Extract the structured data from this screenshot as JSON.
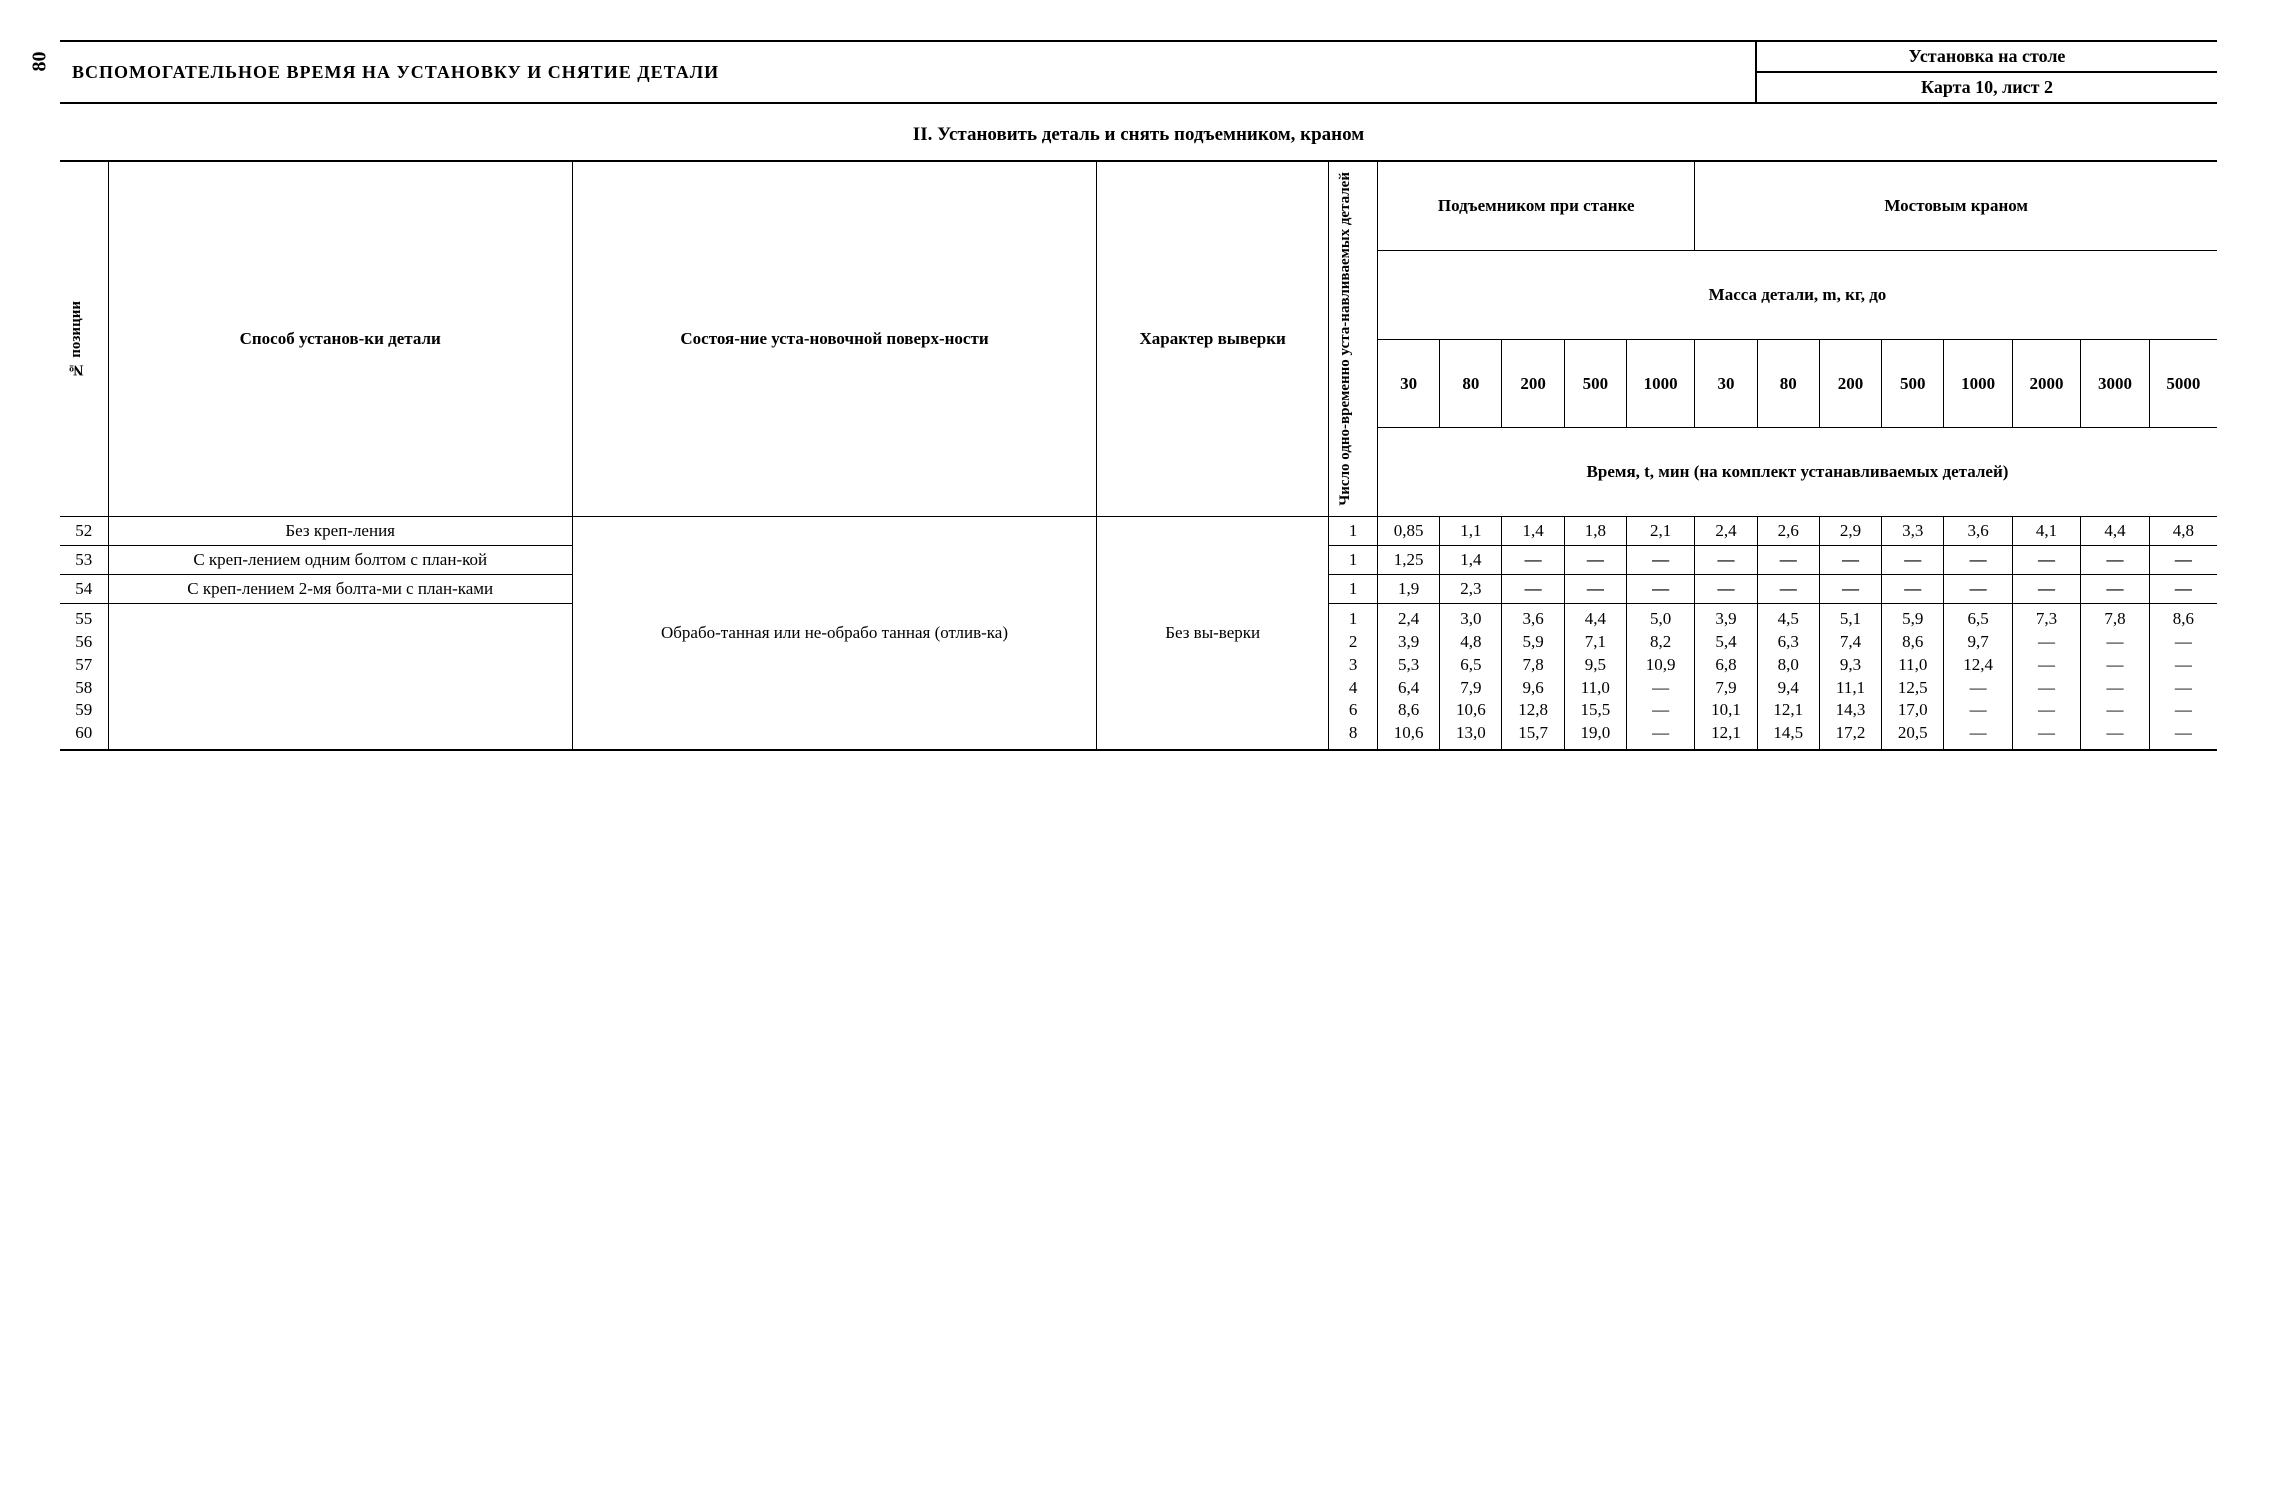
{
  "page_number": "80",
  "header": {
    "main_title": "ВСПОМОГАТЕЛЬНОЕ ВРЕМЯ НА УСТАНОВКУ И СНЯТИЕ ДЕТАЛИ",
    "sub1": "Установка на столе",
    "sub2": "Карта 10, лист 2"
  },
  "section_title": "II. Установить деталь и снять подъемником, краном",
  "col_headers": {
    "pos": "№ позиции",
    "method": "Способ установ-ки детали",
    "surface": "Состоя-ние уста-новочной поверх-ности",
    "align": "Характер выверки",
    "count": "Число одно-временно уста-навливаемых деталей",
    "lift_group": "Подъемником при станке",
    "crane_group": "Мостовым краном",
    "mass_label": "Масса детали, m, кг, до",
    "time_label": "Время, t, мин   (на комплект устанавливаемых деталей)",
    "lift_masses": [
      "30",
      "80",
      "200",
      "500",
      "1000"
    ],
    "crane_masses": [
      "30",
      "80",
      "200",
      "500",
      "1000",
      "2000",
      "3000",
      "5000"
    ]
  },
  "shared": {
    "surface": "Обрабо-танная или не-обрабо танная (отлив-ка)",
    "align": "Без вы-верки"
  },
  "rows": {
    "r52": {
      "pos": "52",
      "method": "Без креп-ления",
      "count": "1",
      "vals": [
        "0,85",
        "1,1",
        "1,4",
        "1,8",
        "2,1",
        "2,4",
        "2,6",
        "2,9",
        "3,3",
        "3,6",
        "4,1",
        "4,4",
        "4,8"
      ]
    },
    "r53": {
      "pos": "53",
      "method": "С креп-лением одним болтом с план-кой",
      "count": "1",
      "vals": [
        "1,25",
        "1,4",
        "—",
        "—",
        "—",
        "—",
        "—",
        "—",
        "—",
        "—",
        "—",
        "—",
        "—"
      ]
    },
    "r54": {
      "pos": "54",
      "method": "С креп-лением 2-мя болта-ми с план-ками",
      "count": "1",
      "vals": [
        "1,9",
        "2,3",
        "—",
        "—",
        "—",
        "—",
        "—",
        "—",
        "—",
        "—",
        "—",
        "—",
        "—"
      ]
    },
    "group": {
      "pos": [
        "55",
        "56",
        "57",
        "58",
        "59",
        "60"
      ],
      "count": [
        "1",
        "2",
        "3",
        "4",
        "6",
        "8"
      ],
      "c1": [
        "2,4",
        "3,9",
        "5,3",
        "6,4",
        "8,6",
        "10,6"
      ],
      "c2": [
        "3,0",
        "4,8",
        "6,5",
        "7,9",
        "10,6",
        "13,0"
      ],
      "c3": [
        "3,6",
        "5,9",
        "7,8",
        "9,6",
        "12,8",
        "15,7"
      ],
      "c4": [
        "4,4",
        "7,1",
        "9,5",
        "11,0",
        "15,5",
        "19,0"
      ],
      "c5": [
        "5,0",
        "8,2",
        "10,9",
        "—",
        "—",
        "—"
      ],
      "c6": [
        "3,9",
        "5,4",
        "6,8",
        "7,9",
        "10,1",
        "12,1"
      ],
      "c7": [
        "4,5",
        "6,3",
        "8,0",
        "9,4",
        "12,1",
        "14,5"
      ],
      "c8": [
        "5,1",
        "7,4",
        "9,3",
        "11,1",
        "14,3",
        "17,2"
      ],
      "c9": [
        "5,9",
        "8,6",
        "11,0",
        "12,5",
        "17,0",
        "20,5"
      ],
      "c10": [
        "6,5",
        "9,7",
        "12,4",
        "—",
        "—",
        "—"
      ],
      "c11": [
        "7,3",
        "—",
        "—",
        "—",
        "—",
        "—"
      ],
      "c12": [
        "7,8",
        "—",
        "—",
        "—",
        "—",
        "—"
      ],
      "c13": [
        "8,6",
        "—",
        "—",
        "—",
        "—",
        "—"
      ]
    }
  }
}
